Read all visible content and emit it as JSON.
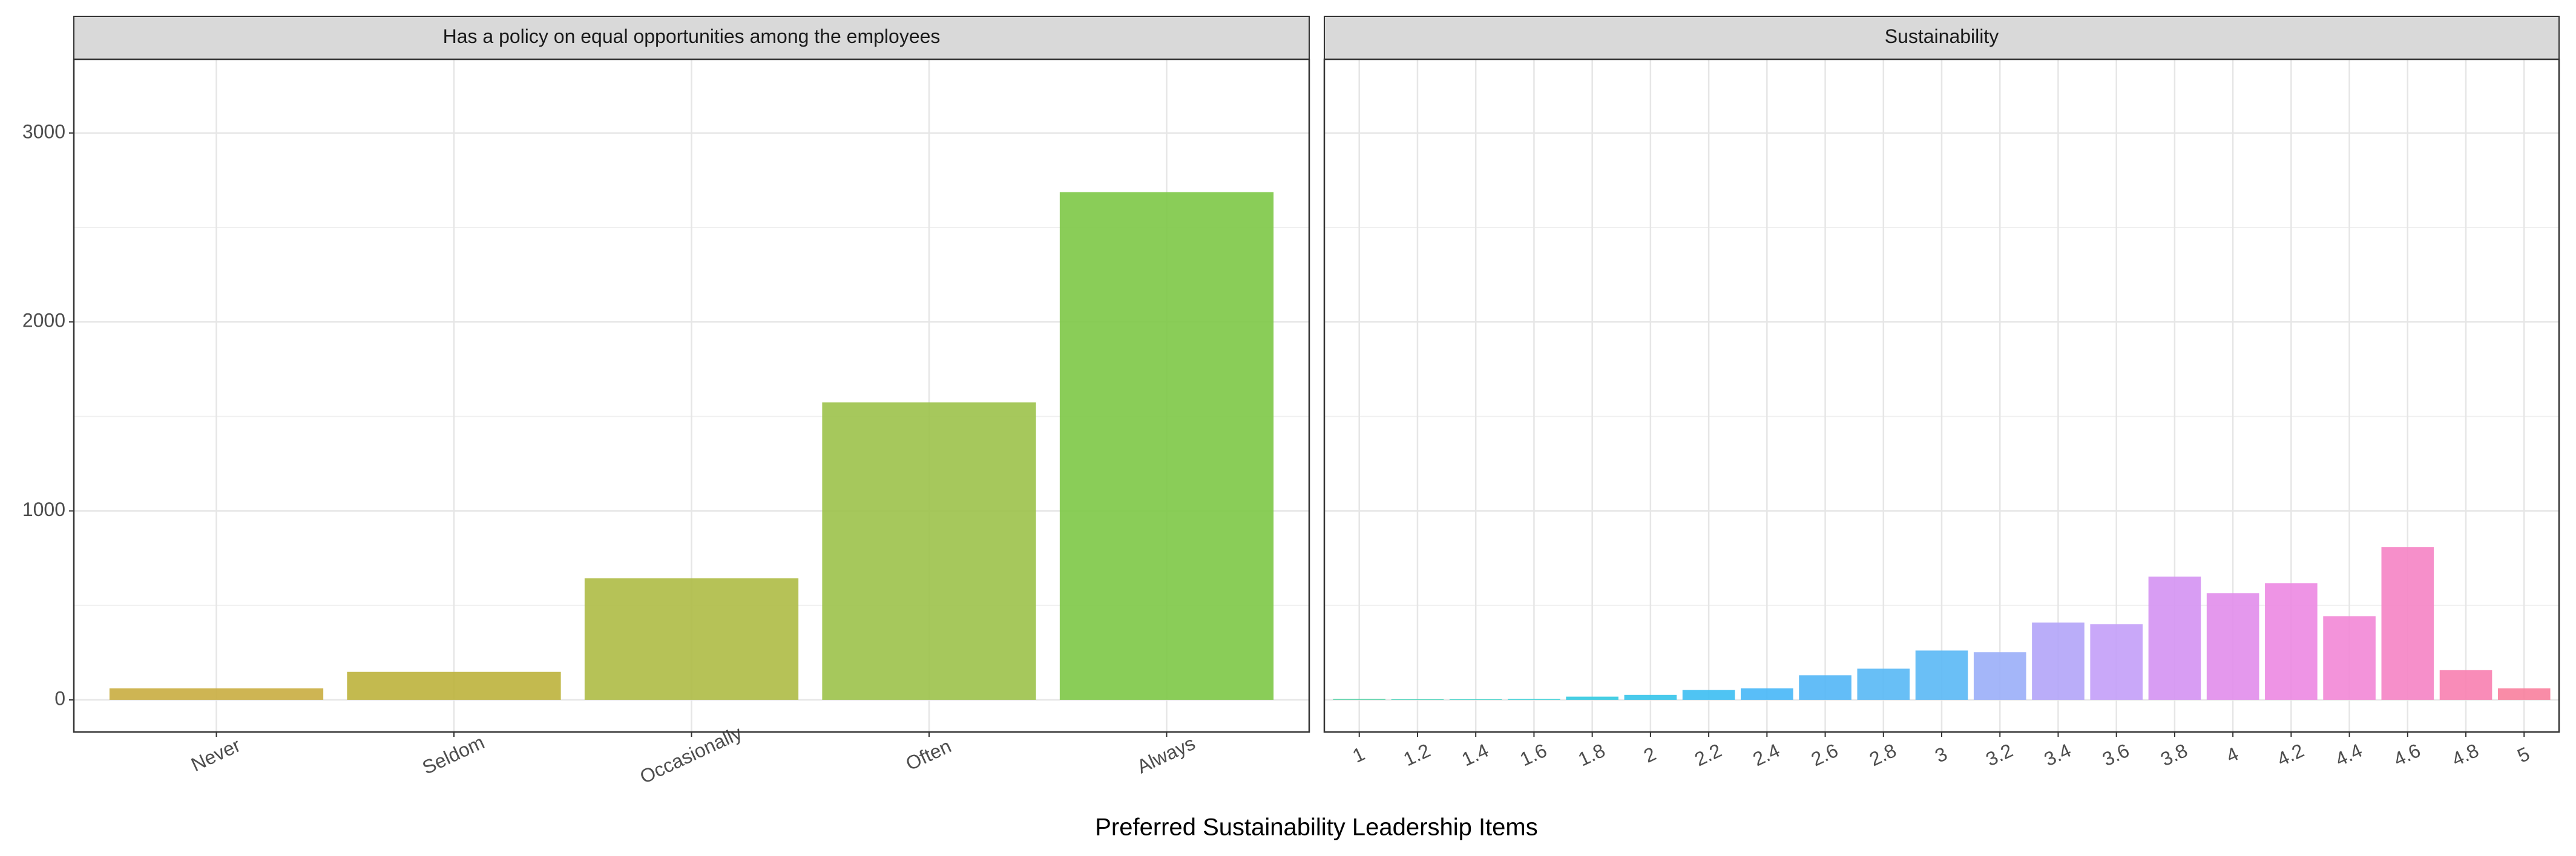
{
  "chart_data": [
    {
      "type": "bar",
      "title": "Has a policy on equal opportunities among the employees",
      "x_label": "Preferred Sustainability Leadership Items",
      "categories": [
        "Never",
        "Seldom",
        "Occasionally",
        "Often",
        "Always"
      ],
      "values": [
        61,
        148,
        643,
        1574,
        2687
      ],
      "colors": [
        "#c9ad40",
        "#bdb33c",
        "#aebb45",
        "#9cc24a",
        "#7dc846"
      ],
      "ylim": [
        -170,
        3390
      ],
      "yticks": [
        0,
        1000,
        2000,
        3000
      ],
      "grid": true
    },
    {
      "type": "bar",
      "title": "Sustainability",
      "categories": [
        "1",
        "1.2",
        "1.4",
        "1.6",
        "1.8",
        "2",
        "2.2",
        "2.4",
        "2.6",
        "2.8",
        "3",
        "3.2",
        "3.4",
        "3.6",
        "3.8",
        "4",
        "4.2",
        "4.4",
        "4.6",
        "4.8",
        "5"
      ],
      "values": [
        5,
        3,
        3,
        5,
        17,
        26,
        52,
        61,
        130,
        165,
        261,
        252,
        409,
        400,
        652,
        565,
        617,
        443,
        809,
        157,
        61
      ],
      "colors": [
        "#4dd0a3",
        "#3fd2b6",
        "#39d2c6",
        "#35cfd6",
        "#33cae1",
        "#35c4ea",
        "#3cbef2",
        "#47b7f7",
        "#52b6f6",
        "#58b8f5",
        "#5ab8f5",
        "#9aaef8",
        "#b3a4f8",
        "#c39ff8",
        "#d492f2",
        "#e18deb",
        "#ec88e2",
        "#f287d6",
        "#f583c4",
        "#f87fb0",
        "#f8809d"
      ],
      "ylim": [
        -170,
        3390
      ],
      "yticks": [
        0,
        1000,
        2000,
        3000
      ],
      "grid": true
    }
  ]
}
